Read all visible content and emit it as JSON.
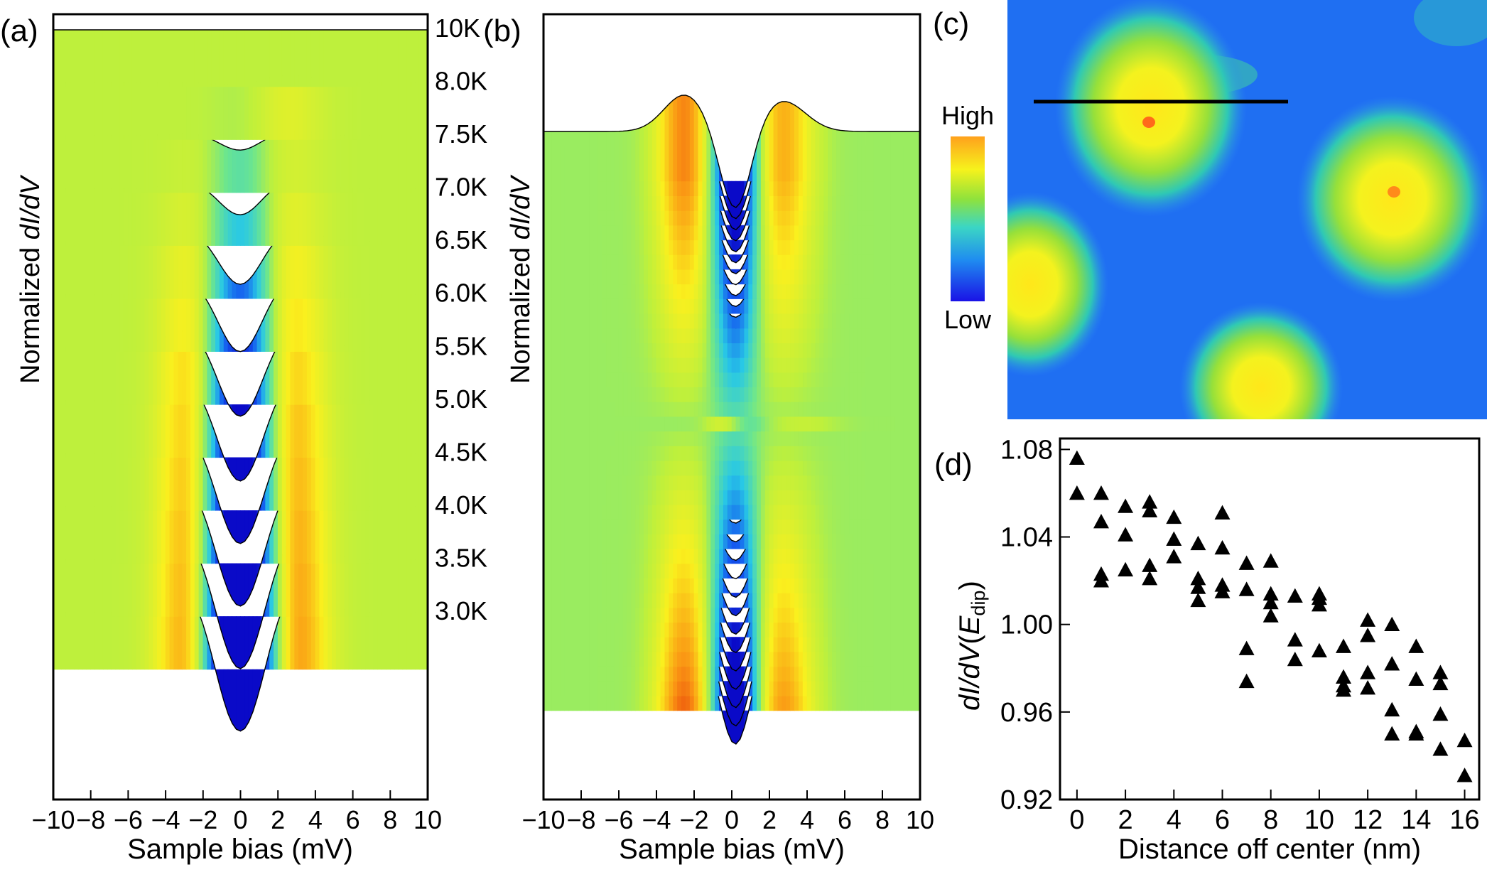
{
  "chart_data": [
    {
      "id": "a",
      "panel_label": "(a)",
      "type": "line",
      "subtype": "waterfall-colormap",
      "ylabel_prefix": "Normalized ",
      "ylabel_italic": "dI/dV",
      "xlabel": "Sample bias (mV)",
      "xlim": [
        -10,
        10
      ],
      "xticks": [
        "−10",
        "−8",
        "−6",
        "−4",
        "−2",
        "0",
        "2",
        "4",
        "6",
        "8",
        "10"
      ],
      "x": [
        -10,
        -8,
        -6,
        -4,
        -3,
        -2,
        -1,
        0,
        1,
        2,
        3,
        4,
        6,
        8,
        10
      ],
      "series": [
        {
          "name": "3.0K",
          "dip": 5.0,
          "peak_left": 1.3,
          "peak_right": 1.4
        },
        {
          "name": "3.5K",
          "dip": 4.6,
          "peak_left": 1.2,
          "peak_right": 1.3
        },
        {
          "name": "4.0K",
          "dip": 4.2,
          "peak_left": 1.1,
          "peak_right": 1.2
        },
        {
          "name": "4.5K",
          "dip": 3.8,
          "peak_left": 1.0,
          "peak_right": 1.1
        },
        {
          "name": "5.0K",
          "dip": 3.4,
          "peak_left": 0.9,
          "peak_right": 1.0
        },
        {
          "name": "5.5K",
          "dip": 2.9,
          "peak_left": 0.8,
          "peak_right": 0.85
        },
        {
          "name": "6.0K",
          "dip": 2.4,
          "peak_left": 0.6,
          "peak_right": 0.7
        },
        {
          "name": "6.5K",
          "dip": 1.8,
          "peak_left": 0.45,
          "peak_right": 0.55
        },
        {
          "name": "7.0K",
          "dip": 1.1,
          "peak_left": 0.25,
          "peak_right": 0.35
        },
        {
          "name": "7.5K",
          "dip": 0.6,
          "peak_left": 0.1,
          "peak_right": 0.2
        },
        {
          "name": "8.0K",
          "dip": 0.1,
          "peak_left": 0.0,
          "peak_right": 0.3
        },
        {
          "name": "10K",
          "dip": 0.0,
          "peak_left": 0.0,
          "peak_right": 0.0
        }
      ]
    },
    {
      "id": "b",
      "panel_label": "(b)",
      "type": "line",
      "subtype": "waterfall-colormap",
      "ylabel_prefix": "Normalized ",
      "ylabel_italic": "dI/dV",
      "xlabel": "Sample bias (mV)",
      "xlim": [
        -10,
        10
      ],
      "xticks": [
        "−10",
        "−8",
        "−6",
        "−4",
        "−2",
        "0",
        "2",
        "4",
        "6",
        "8",
        "10"
      ],
      "n_curves": 37,
      "highlight_index": 19,
      "highlight_color": "#ee1c1c"
    },
    {
      "id": "c",
      "panel_label": "(c)",
      "type": "heatmap",
      "colorbar_high": "High",
      "colorbar_low": "Low"
    },
    {
      "id": "d",
      "panel_label": "(d)",
      "type": "scatter",
      "marker": "triangle",
      "ylabel_italic": "dI/dV",
      "ylabel_mid": "(",
      "ylabel_E": "E",
      "ylabel_sub": "dip",
      "ylabel_end": ")",
      "xlabel": "Distance off center (nm)",
      "xlim": [
        -0.7,
        16.6
      ],
      "ylim": [
        0.92,
        1.085
      ],
      "xticks": [
        0,
        2,
        4,
        6,
        8,
        10,
        12,
        14,
        16
      ],
      "yticks": [
        "0.92",
        "0.96",
        "1.00",
        "1.04",
        "1.08"
      ],
      "ytick_values": [
        0.92,
        0.96,
        1.0,
        1.04,
        1.08
      ],
      "points": [
        [
          0,
          1.076
        ],
        [
          0,
          1.06
        ],
        [
          1,
          1.06
        ],
        [
          1,
          1.047
        ],
        [
          1,
          1.023
        ],
        [
          1,
          1.02
        ],
        [
          2,
          1.054
        ],
        [
          2,
          1.041
        ],
        [
          2,
          1.025
        ],
        [
          3,
          1.056
        ],
        [
          3,
          1.052
        ],
        [
          3,
          1.027
        ],
        [
          3,
          1.021
        ],
        [
          4,
          1.049
        ],
        [
          4,
          1.039
        ],
        [
          4,
          1.031
        ],
        [
          5,
          1.037
        ],
        [
          5,
          1.021
        ],
        [
          5,
          1.017
        ],
        [
          5,
          1.011
        ],
        [
          6,
          1.051
        ],
        [
          6,
          1.035
        ],
        [
          6,
          1.018
        ],
        [
          6,
          1.015
        ],
        [
          7,
          1.028
        ],
        [
          7,
          1.016
        ],
        [
          7,
          0.989
        ],
        [
          7,
          0.974
        ],
        [
          8,
          1.029
        ],
        [
          8,
          1.014
        ],
        [
          8,
          1.01
        ],
        [
          8,
          1.004
        ],
        [
          9,
          1.013
        ],
        [
          9,
          0.993
        ],
        [
          9,
          0.984
        ],
        [
          10,
          1.014
        ],
        [
          10,
          1.012
        ],
        [
          10,
          1.009
        ],
        [
          10,
          0.988
        ],
        [
          11,
          0.99
        ],
        [
          11,
          0.976
        ],
        [
          11,
          0.972
        ],
        [
          11,
          0.97
        ],
        [
          12,
          1.002
        ],
        [
          12,
          0.995
        ],
        [
          12,
          0.978
        ],
        [
          12,
          0.971
        ],
        [
          13,
          1.0
        ],
        [
          13,
          0.982
        ],
        [
          13,
          0.961
        ],
        [
          13,
          0.95
        ],
        [
          14,
          0.99
        ],
        [
          14,
          0.975
        ],
        [
          14,
          0.951
        ],
        [
          14,
          0.95
        ],
        [
          15,
          0.978
        ],
        [
          15,
          0.973
        ],
        [
          15,
          0.959
        ],
        [
          15,
          0.943
        ],
        [
          16,
          0.947
        ],
        [
          16,
          0.931
        ]
      ]
    }
  ]
}
